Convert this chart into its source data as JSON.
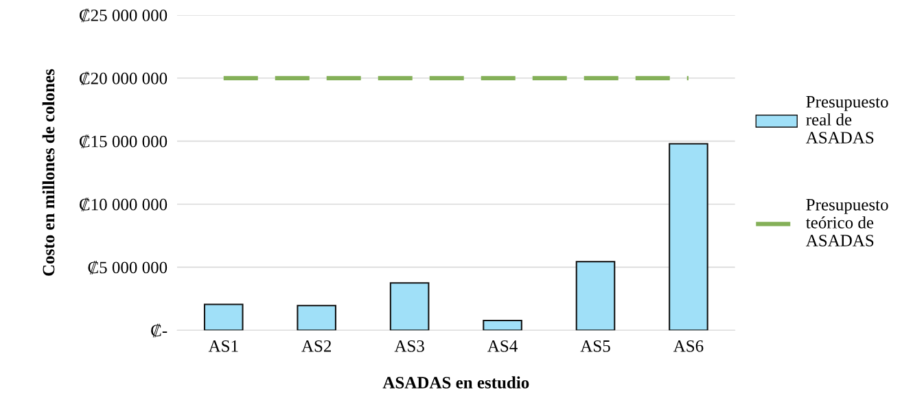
{
  "chart_data": {
    "type": "bar",
    "xlabel": "ASADAS en estudio",
    "ylabel": "Costo en millones de colones",
    "categories": [
      "AS1",
      "AS2",
      "AS3",
      "AS4",
      "AS5",
      "AS6"
    ],
    "series": [
      {
        "name": "Presupuesto real de ASADAS",
        "color": "#a0e0f8",
        "values": [
          2050000,
          1960000,
          3750000,
          770000,
          5440000,
          14790000
        ]
      },
      {
        "name": "Presupuesto teórico de ASADAS",
        "type": "line",
        "color": "#84b058",
        "line_style": "dashed",
        "values": [
          20000000,
          20000000,
          20000000,
          20000000,
          20000000,
          20000000
        ]
      }
    ],
    "ylim": [
      0,
      25000000
    ],
    "yticks": [
      {
        "value": 0,
        "label": "₡-"
      },
      {
        "value": 5000000,
        "label": "₡5 000 000"
      },
      {
        "value": 10000000,
        "label": "₡10 000 000"
      },
      {
        "value": 15000000,
        "label": "₡15 000 000"
      },
      {
        "value": 20000000,
        "label": "₡20 000 000"
      },
      {
        "value": 25000000,
        "label": "₡25 000 000"
      }
    ],
    "grid": "y",
    "legend": "right"
  }
}
